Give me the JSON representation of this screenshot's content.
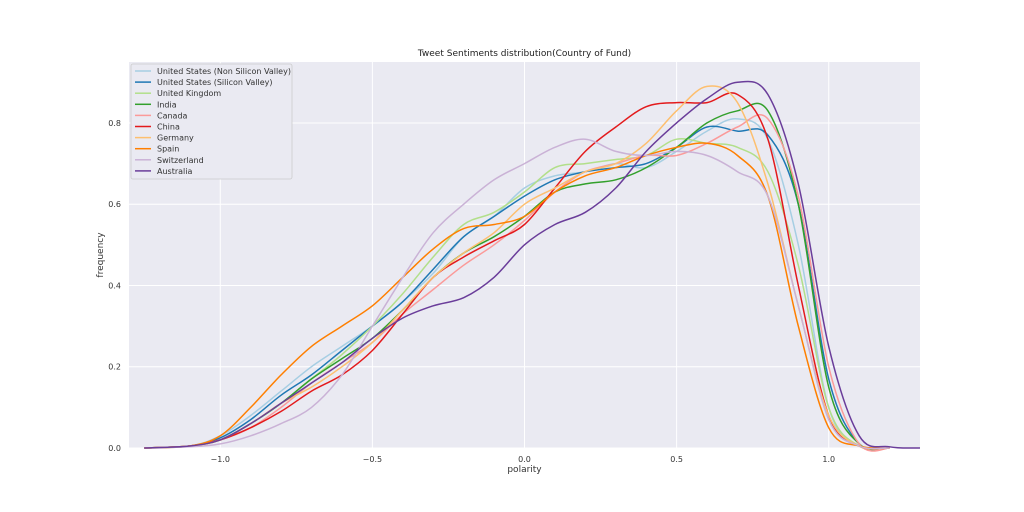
{
  "chart_data": {
    "type": "line",
    "title": "Tweet Sentiments distribution(Country of Fund)",
    "xlabel": "polarity",
    "ylabel": "frequency",
    "xlim": [
      -1.3,
      1.3
    ],
    "ylim": [
      0,
      0.95
    ],
    "xticks": [
      -1.0,
      -0.5,
      0.0,
      0.5,
      1.0
    ],
    "xtick_labels": [
      "−1.0",
      "−0.5",
      "0.0",
      "0.5",
      "1.0"
    ],
    "yticks": [
      0.0,
      0.2,
      0.4,
      0.6,
      0.8
    ],
    "ytick_labels": [
      "0.0",
      "0.2",
      "0.4",
      "0.6",
      "0.8"
    ],
    "grid": true,
    "legend_position": "top-left",
    "series": [
      {
        "name": "United States (Non Silicon Valley)",
        "color": "#a6cee3",
        "x": [
          -1.25,
          -1.1,
          -1.0,
          -0.9,
          -0.8,
          -0.7,
          -0.6,
          -0.5,
          -0.4,
          -0.3,
          -0.2,
          -0.1,
          0.0,
          0.1,
          0.2,
          0.3,
          0.4,
          0.5,
          0.6,
          0.7,
          0.8,
          0.9,
          1.0,
          1.1,
          1.2
        ],
        "y": [
          0.0,
          0.005,
          0.03,
          0.08,
          0.14,
          0.2,
          0.25,
          0.3,
          0.36,
          0.43,
          0.52,
          0.57,
          0.64,
          0.67,
          0.68,
          0.7,
          0.69,
          0.73,
          0.78,
          0.81,
          0.76,
          0.5,
          0.1,
          0.005,
          0.0
        ]
      },
      {
        "name": "United States (Silicon Valley)",
        "color": "#1f78b4",
        "x": [
          -1.25,
          -1.1,
          -1.0,
          -0.9,
          -0.8,
          -0.7,
          -0.6,
          -0.5,
          -0.4,
          -0.3,
          -0.2,
          -0.1,
          0.0,
          0.1,
          0.2,
          0.3,
          0.4,
          0.5,
          0.6,
          0.7,
          0.8,
          0.9,
          1.0,
          1.1,
          1.2
        ],
        "y": [
          0.0,
          0.005,
          0.025,
          0.07,
          0.13,
          0.18,
          0.24,
          0.3,
          0.36,
          0.44,
          0.52,
          0.57,
          0.62,
          0.66,
          0.68,
          0.69,
          0.7,
          0.74,
          0.79,
          0.78,
          0.77,
          0.6,
          0.17,
          0.01,
          0.0
        ]
      },
      {
        "name": "United Kingdom",
        "color": "#b2df8a",
        "x": [
          -1.25,
          -1.1,
          -1.0,
          -0.9,
          -0.8,
          -0.7,
          -0.6,
          -0.5,
          -0.4,
          -0.3,
          -0.2,
          -0.1,
          0.0,
          0.1,
          0.2,
          0.3,
          0.4,
          0.5,
          0.6,
          0.7,
          0.8,
          0.9,
          1.0,
          1.1,
          1.2
        ],
        "y": [
          0.0,
          0.005,
          0.02,
          0.06,
          0.11,
          0.17,
          0.23,
          0.3,
          0.38,
          0.47,
          0.55,
          0.58,
          0.63,
          0.69,
          0.7,
          0.71,
          0.72,
          0.76,
          0.75,
          0.74,
          0.68,
          0.45,
          0.1,
          0.005,
          0.0
        ]
      },
      {
        "name": "India",
        "color": "#33a02c",
        "x": [
          -1.25,
          -1.1,
          -1.0,
          -0.9,
          -0.8,
          -0.7,
          -0.6,
          -0.5,
          -0.4,
          -0.3,
          -0.2,
          -0.1,
          0.0,
          0.1,
          0.2,
          0.3,
          0.4,
          0.5,
          0.6,
          0.7,
          0.8,
          0.9,
          1.0,
          1.1,
          1.2
        ],
        "y": [
          0.0,
          0.005,
          0.02,
          0.06,
          0.11,
          0.17,
          0.22,
          0.27,
          0.34,
          0.42,
          0.48,
          0.52,
          0.57,
          0.63,
          0.65,
          0.66,
          0.69,
          0.74,
          0.8,
          0.83,
          0.83,
          0.6,
          0.15,
          0.01,
          0.0
        ]
      },
      {
        "name": "Canada",
        "color": "#fb9a99",
        "x": [
          -1.25,
          -1.1,
          -1.0,
          -0.9,
          -0.8,
          -0.7,
          -0.6,
          -0.5,
          -0.4,
          -0.3,
          -0.2,
          -0.1,
          0.0,
          0.1,
          0.2,
          0.3,
          0.4,
          0.5,
          0.6,
          0.7,
          0.8,
          0.9,
          1.0,
          1.1,
          1.2
        ],
        "y": [
          0.0,
          0.005,
          0.02,
          0.05,
          0.1,
          0.16,
          0.21,
          0.26,
          0.33,
          0.39,
          0.45,
          0.5,
          0.56,
          0.63,
          0.68,
          0.7,
          0.72,
          0.72,
          0.75,
          0.79,
          0.81,
          0.62,
          0.2,
          0.01,
          0.0
        ]
      },
      {
        "name": "China",
        "color": "#e31a1c",
        "x": [
          -1.25,
          -1.1,
          -1.0,
          -0.9,
          -0.8,
          -0.7,
          -0.6,
          -0.5,
          -0.4,
          -0.3,
          -0.2,
          -0.1,
          0.0,
          0.1,
          0.2,
          0.3,
          0.4,
          0.5,
          0.6,
          0.7,
          0.8,
          0.9,
          1.0,
          1.1,
          1.2
        ],
        "y": [
          0.0,
          0.005,
          0.02,
          0.05,
          0.09,
          0.14,
          0.18,
          0.24,
          0.33,
          0.42,
          0.47,
          0.51,
          0.55,
          0.64,
          0.73,
          0.79,
          0.84,
          0.85,
          0.85,
          0.87,
          0.76,
          0.4,
          0.08,
          0.005,
          0.0
        ]
      },
      {
        "name": "Germany",
        "color": "#fdbf6f",
        "x": [
          -1.25,
          -1.1,
          -1.0,
          -0.9,
          -0.8,
          -0.7,
          -0.6,
          -0.5,
          -0.4,
          -0.3,
          -0.2,
          -0.1,
          0.0,
          0.1,
          0.2,
          0.3,
          0.4,
          0.5,
          0.6,
          0.7,
          0.8,
          0.9,
          1.0,
          1.1,
          1.2
        ],
        "y": [
          0.0,
          0.005,
          0.02,
          0.06,
          0.11,
          0.15,
          0.2,
          0.26,
          0.34,
          0.42,
          0.48,
          0.53,
          0.6,
          0.64,
          0.68,
          0.7,
          0.75,
          0.83,
          0.89,
          0.85,
          0.65,
          0.35,
          0.08,
          0.005,
          0.0
        ]
      },
      {
        "name": "Spain",
        "color": "#ff7f00",
        "x": [
          -1.25,
          -1.1,
          -1.0,
          -0.9,
          -0.8,
          -0.7,
          -0.6,
          -0.5,
          -0.4,
          -0.3,
          -0.2,
          -0.1,
          0.0,
          0.1,
          0.2,
          0.3,
          0.4,
          0.5,
          0.6,
          0.7,
          0.8,
          0.9,
          1.0,
          1.1,
          1.2
        ],
        "y": [
          0.0,
          0.005,
          0.03,
          0.1,
          0.18,
          0.25,
          0.3,
          0.35,
          0.42,
          0.49,
          0.54,
          0.55,
          0.57,
          0.63,
          0.67,
          0.69,
          0.72,
          0.74,
          0.75,
          0.72,
          0.62,
          0.3,
          0.05,
          0.005,
          0.0
        ]
      },
      {
        "name": "Switzerland",
        "color": "#cab2d6",
        "x": [
          -1.25,
          -1.1,
          -1.0,
          -0.9,
          -0.8,
          -0.7,
          -0.6,
          -0.5,
          -0.4,
          -0.3,
          -0.2,
          -0.1,
          0.0,
          0.1,
          0.2,
          0.3,
          0.4,
          0.5,
          0.6,
          0.7,
          0.8,
          0.9,
          1.0,
          1.1,
          1.2
        ],
        "y": [
          0.0,
          0.003,
          0.01,
          0.03,
          0.06,
          0.1,
          0.18,
          0.3,
          0.42,
          0.53,
          0.6,
          0.66,
          0.7,
          0.74,
          0.76,
          0.73,
          0.72,
          0.73,
          0.72,
          0.68,
          0.62,
          0.35,
          0.07,
          0.005,
          0.0
        ]
      },
      {
        "name": "Australia",
        "color": "#6a3d9a",
        "x": [
          -1.25,
          -1.1,
          -1.0,
          -0.9,
          -0.8,
          -0.7,
          -0.6,
          -0.5,
          -0.4,
          -0.3,
          -0.2,
          -0.1,
          0.0,
          0.1,
          0.2,
          0.3,
          0.4,
          0.5,
          0.6,
          0.7,
          0.8,
          0.9,
          1.0,
          1.1,
          1.2,
          1.3
        ],
        "y": [
          0.0,
          0.005,
          0.02,
          0.06,
          0.11,
          0.16,
          0.21,
          0.27,
          0.32,
          0.35,
          0.37,
          0.42,
          0.5,
          0.55,
          0.58,
          0.64,
          0.73,
          0.8,
          0.86,
          0.9,
          0.87,
          0.65,
          0.25,
          0.03,
          0.003,
          0.0
        ]
      }
    ]
  }
}
